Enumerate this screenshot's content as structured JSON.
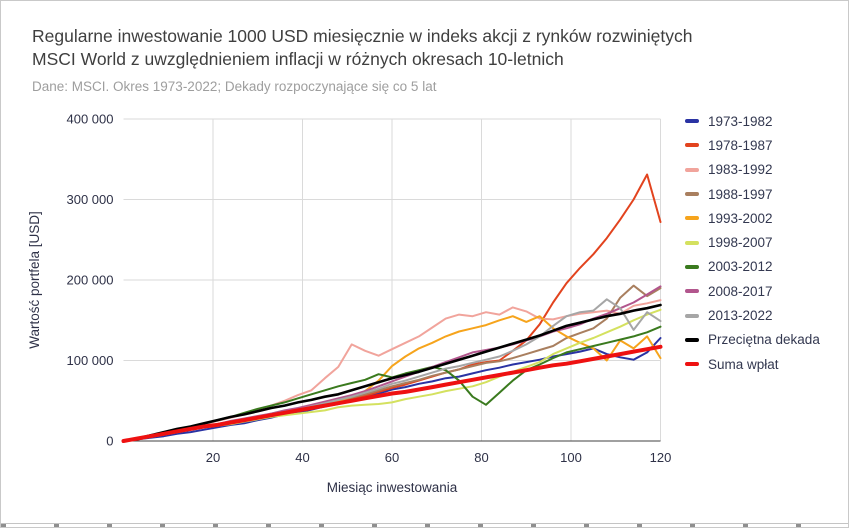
{
  "title": {
    "line1": "Regularne inwestowanie 1000 USD miesięcznie w indeks akcji z rynków rozwiniętych",
    "line2": "MSCI World z uwzględnieniem inflacji w różnych okresach 10-letnich"
  },
  "subtitle": "Dane: MSCI. Okres 1973-2022; Dekady rozpoczynające się co 5 lat",
  "chart_data": {
    "type": "line",
    "xlabel": "Miesiąc inwestowania",
    "ylabel": "Wartość portfela [USD]",
    "xlim": [
      0,
      120
    ],
    "ylim": [
      0,
      400000
    ],
    "grid": true,
    "legend_position": "right",
    "x_ticks": [
      {
        "value": 20,
        "label": "20"
      },
      {
        "value": 40,
        "label": "40"
      },
      {
        "value": 60,
        "label": "60"
      },
      {
        "value": 80,
        "label": "80"
      },
      {
        "value": 100,
        "label": "100"
      },
      {
        "value": 120,
        "label": "120"
      }
    ],
    "y_ticks": [
      {
        "value": 0,
        "label": "0"
      },
      {
        "value": 100,
        "label": "100 000"
      },
      {
        "value": 200,
        "label": "200 000"
      },
      {
        "value": 300,
        "label": "300 000"
      },
      {
        "value": 400,
        "label": "400 000"
      }
    ],
    "x_months": [
      0,
      3,
      6,
      9,
      12,
      15,
      18,
      21,
      24,
      27,
      30,
      33,
      36,
      39,
      42,
      45,
      48,
      51,
      54,
      57,
      60,
      63,
      66,
      69,
      72,
      75,
      78,
      81,
      84,
      87,
      90,
      93,
      96,
      99,
      102,
      105,
      108,
      111,
      114,
      117,
      120
    ],
    "values_unit": "thousands USD",
    "series": [
      {
        "name": "1973-1982",
        "color": "#2a33a3",
        "width": 2,
        "values_thousands_usd": [
          0,
          2,
          4,
          6,
          9,
          11,
          14,
          17,
          20,
          22,
          26,
          29,
          33,
          35,
          39,
          43,
          46,
          50,
          55,
          59,
          64,
          67,
          71,
          74,
          78,
          80,
          84,
          88,
          91,
          95,
          98,
          101,
          105,
          108,
          111,
          115,
          108,
          104,
          101,
          110,
          128
        ]
      },
      {
        "name": "1978-1987",
        "color": "#e2431e",
        "width": 2,
        "values_thousands_usd": [
          0,
          3,
          6,
          8,
          11,
          14,
          17,
          20,
          23,
          26,
          29,
          32,
          35,
          38,
          41,
          44,
          48,
          52,
          56,
          61,
          66,
          70,
          75,
          80,
          85,
          89,
          95,
          98,
          100,
          112,
          125,
          145,
          172,
          196,
          215,
          232,
          252,
          275,
          300,
          331,
          272
        ]
      },
      {
        "name": "1983-1992",
        "color": "#f1a49c",
        "width": 2,
        "values_thousands_usd": [
          0,
          3,
          6,
          9,
          13,
          17,
          21,
          25,
          29,
          33,
          38,
          44,
          50,
          57,
          63,
          78,
          92,
          120,
          112,
          106,
          114,
          122,
          130,
          141,
          152,
          157,
          155,
          160,
          157,
          166,
          161,
          152,
          151,
          155,
          158,
          160,
          162,
          158,
          168,
          171,
          175
        ]
      },
      {
        "name": "1988-1997",
        "color": "#a97f5f",
        "width": 2,
        "values_thousands_usd": [
          0,
          3,
          6,
          9,
          12,
          15,
          18,
          21,
          24,
          27,
          30,
          34,
          37,
          40,
          43,
          47,
          50,
          54,
          58,
          63,
          68,
          72,
          76,
          81,
          85,
          89,
          93,
          97,
          99,
          103,
          108,
          113,
          118,
          128,
          134,
          140,
          152,
          178,
          193,
          180,
          190
        ]
      },
      {
        "name": "1993-2002",
        "color": "#f6a41c",
        "width": 2,
        "values_thousands_usd": [
          0,
          3,
          6,
          9,
          12,
          15,
          18,
          21,
          24,
          27,
          30,
          33,
          36,
          39,
          42,
          46,
          50,
          55,
          62,
          75,
          93,
          105,
          115,
          122,
          130,
          136,
          140,
          144,
          150,
          155,
          148,
          155,
          140,
          130,
          122,
          115,
          100,
          125,
          115,
          130,
          103
        ]
      },
      {
        "name": "1998-2007",
        "color": "#d4e15f",
        "width": 2,
        "values_thousands_usd": [
          0,
          2,
          5,
          8,
          11,
          14,
          17,
          19,
          21,
          24,
          27,
          30,
          32,
          34,
          36,
          38,
          42,
          44,
          45,
          46,
          48,
          52,
          55,
          58,
          62,
          65,
          68,
          73,
          80,
          86,
          92,
          98,
          108,
          115,
          122,
          128,
          135,
          142,
          150,
          157,
          163
        ]
      },
      {
        "name": "2003-2012",
        "color": "#3a7a1e",
        "width": 2,
        "values_thousands_usd": [
          0,
          3,
          7,
          10,
          14,
          18,
          22,
          26,
          30,
          35,
          40,
          44,
          48,
          53,
          58,
          63,
          68,
          72,
          76,
          83,
          79,
          84,
          88,
          92,
          88,
          75,
          55,
          45,
          60,
          75,
          88,
          95,
          103,
          110,
          114,
          118,
          122,
          126,
          130,
          135,
          142
        ]
      },
      {
        "name": "2008-2017",
        "color": "#b2568d",
        "width": 2,
        "values_thousands_usd": [
          0,
          3,
          6,
          9,
          12,
          15,
          18,
          21,
          25,
          28,
          31,
          34,
          38,
          41,
          45,
          49,
          53,
          57,
          62,
          68,
          74,
          80,
          86,
          92,
          98,
          104,
          110,
          113,
          116,
          120,
          125,
          130,
          136,
          140,
          145,
          152,
          158,
          165,
          172,
          182,
          192
        ]
      },
      {
        "name": "2013-2022",
        "color": "#a6a6a6",
        "width": 2,
        "values_thousands_usd": [
          0,
          3,
          6,
          9,
          12,
          15,
          18,
          21,
          24,
          27,
          30,
          33,
          36,
          39,
          43,
          47,
          51,
          55,
          60,
          65,
          71,
          75,
          80,
          85,
          90,
          93,
          97,
          101,
          105,
          112,
          120,
          130,
          143,
          155,
          160,
          162,
          176,
          165,
          138,
          160,
          149
        ]
      },
      {
        "name": "Przeciętna dekada",
        "color": "#000000",
        "width": 2.6,
        "values_thousands_usd": [
          0,
          3,
          7,
          11,
          15,
          18,
          22,
          26,
          30,
          33,
          37,
          41,
          44,
          48,
          51,
          55,
          58,
          63,
          68,
          73,
          78,
          82,
          86,
          91,
          96,
          101,
          106,
          111,
          116,
          121,
          126,
          131,
          137,
          143,
          147,
          151,
          155,
          158,
          162,
          165,
          169
        ]
      },
      {
        "name": "Suma wpłat",
        "color": "#ee1111",
        "width": 4,
        "values_thousands_usd": [
          0,
          3,
          6,
          9,
          12,
          15,
          18,
          20,
          23,
          26,
          29,
          32,
          35,
          38,
          41,
          44,
          47,
          50,
          53,
          56,
          59,
          61,
          64,
          67,
          70,
          73,
          76,
          79,
          82,
          85,
          88,
          91,
          94,
          96,
          99,
          102,
          105,
          108,
          111,
          114,
          117
        ]
      }
    ]
  },
  "layout_colors": {
    "gridline": "#dadada",
    "baseline": "#424242",
    "tick_text": "#2e3147",
    "title_text": "#3f3f3f",
    "subtitle_text": "#9e9e9e",
    "legend_text": "#333850"
  }
}
